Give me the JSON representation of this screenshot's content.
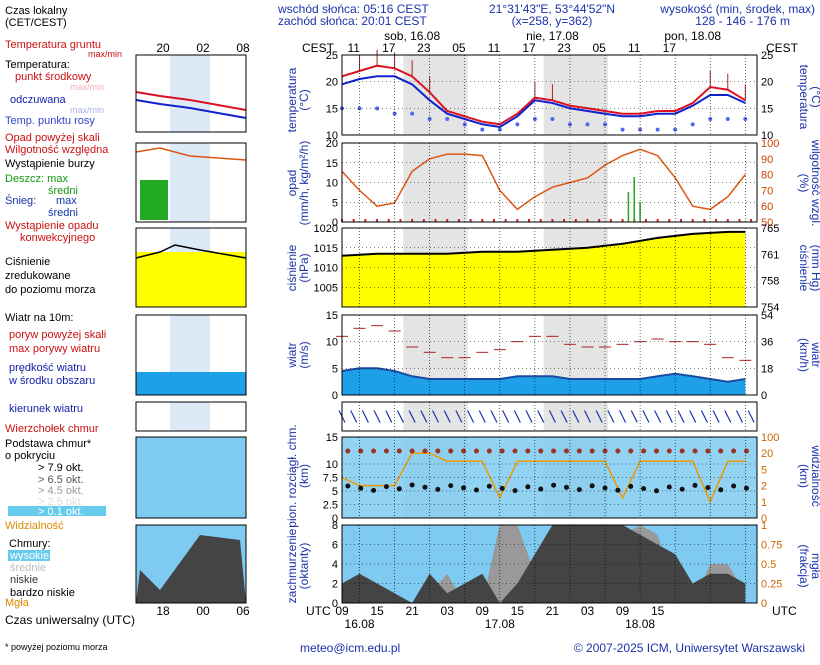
{
  "header": {
    "sunrise": "wschód słońca: 05:16 CEST",
    "sunset": "zachód słońca: 20:01 CEST",
    "coords": "21°31'43\"E, 53°44'52\"N",
    "grid": "(x=258, y=362)",
    "alt_title": "wysokość (min, środek, max)",
    "alt_values": "128 - 146 - 176 m"
  },
  "legend": {
    "local_time": "Czas lokalny",
    "local_time2": "(CET/CEST)",
    "ground_temp": "Temperatura gruntu",
    "ground_temp_mm": "max/min",
    "temperature": "Temperatura:",
    "center_point": "punkt środkowy",
    "center_mm": "max/min",
    "felt": "odczuwana",
    "felt_mm": "max/min",
    "dew": "Temp. punktu rosy",
    "precip_over": "Opad powyżej skali",
    "humidity": "Wilgotność względna",
    "storm": "Wystąpienie burzy",
    "rain": "Deszcz: max",
    "rain_mean": "średni",
    "snow": "Śnieg:",
    "snow_max": "max",
    "snow_mean": "średni",
    "convective": "Wystąpienie opadu",
    "convective2": "konwekcyjnego",
    "pressure": "Ciśnienie",
    "pressure2": "zredukowane",
    "pressure3": "do poziomu morza",
    "wind_title": "Wiatr na 10m:",
    "gust_over": "poryw powyżej skali",
    "gust_max": "max porywy wiatru",
    "wind_speed": "prędkość wiatru",
    "wind_speed2": "w środku obszaru",
    "wind_dir": "kierunek wiatru",
    "cloud_top": "Wierzchołek chmur",
    "cloud_base": "Podstawa chmur*",
    "cloud_base2": "o pokryciu",
    "okt79": "> 7.9 okt.",
    "okt65": "> 6.5 okt.",
    "okt45": "> 4.5 okt.",
    "okt25": "> 2.5 okt.",
    "okt01": "> 0.1 okt.",
    "visibility": "Widzialność",
    "clouds": "Chmury:",
    "cl_high": "wysokie",
    "cl_mid": "średnie",
    "cl_low": "niskie",
    "cl_vlow": "bardzo niskie",
    "fog": "Mgła",
    "utc_title": "Czas uniwersalny (UTC)",
    "footnote": "* powyżej poziomu morza"
  },
  "legend_axis": {
    "local_ticks": [
      "20",
      "02",
      "08"
    ],
    "utc_ticks": [
      "18",
      "00",
      "06"
    ]
  },
  "main": {
    "cest": "CEST",
    "utc": "UTC",
    "days_top": [
      "sob, 16.08",
      "nie, 17.08",
      "pon, 18.08"
    ],
    "hours_top": [
      "11",
      "17",
      "23",
      "05",
      "11",
      "17",
      "23",
      "05",
      "11",
      "17"
    ],
    "hours_bottom": [
      "09",
      "15",
      "21",
      "03",
      "09",
      "15",
      "21",
      "03",
      "09",
      "15"
    ],
    "days_bottom": [
      "16.08",
      "17.08",
      "18.08"
    ],
    "labels": {
      "temp_l": "temperatura",
      "temp_l2": "(°C)",
      "temp_r": "temperatura",
      "temp_r2": "(°C)",
      "precip_l": "opad",
      "precip_l2": "(mm/h, kg/m²/h)",
      "hum_r": "wilgotność wzgl.",
      "hum_r2": "(%)",
      "pres_l": "ciśnienie",
      "pres_l2": "(hPa)",
      "pres_r": "ciśnienie",
      "pres_r2": "(mm Hg)",
      "wind_l": "wiatr",
      "wind_l2": "(m/s)",
      "wind_r": "wiatr",
      "wind_r2": "(km/h)",
      "cloud_l": "pion. rozciągł. chm.",
      "cloud_l2": "(km)",
      "vis_r": "widzialność",
      "vis_r2": "(km)",
      "cover_l": "zachmurzenie",
      "cover_l2": "(oktanty)",
      "fog_r": "mgła",
      "fog_r2": "(frakcja)"
    }
  },
  "footer": {
    "email": "meteo@icm.edu.pl",
    "copyright": "© 2007-2025 ICM, Uniwersytet Warszawski"
  },
  "colors": {
    "temp": "#dd1122",
    "felt": "#1122cc",
    "dew": "#5566ee",
    "humidity": "#dd5511",
    "pressure_fill": "#ffff00",
    "wind_fill": "#1ea0e8",
    "wind_dark": "#1a4ba0",
    "rain": "#22aa22",
    "night_shade": "#e4e4e4",
    "visibility": "#ee9900"
  },
  "chart_data": [
    {
      "type": "line",
      "title": "temperatura",
      "ylabel": "°C",
      "ylim": [
        10,
        25
      ],
      "x_hours_from_start": [
        0,
        3,
        6,
        9,
        12,
        15,
        18,
        21,
        24,
        27,
        30,
        33,
        36,
        39,
        42,
        45,
        48,
        51,
        54,
        57,
        60,
        63,
        66,
        69
      ],
      "series": [
        {
          "name": "punkt środkowy",
          "values": [
            21,
            22,
            23,
            22.5,
            21,
            18,
            14.5,
            13.5,
            12.5,
            12,
            14,
            17,
            16.5,
            15.5,
            15,
            14.5,
            14,
            14,
            14.5,
            14.5,
            16,
            19,
            18.5,
            16.5
          ]
        },
        {
          "name": "odczuwana",
          "values": [
            19.5,
            20.5,
            21,
            21,
            19.5,
            16.5,
            14,
            13,
            12,
            11.5,
            13.5,
            16.5,
            16,
            15,
            14.5,
            14,
            13.5,
            13.5,
            14,
            14,
            15.5,
            17.5,
            17.5,
            16
          ]
        },
        {
          "name": "Temp. punktu rosy",
          "values": [
            15,
            15,
            15,
            14,
            14,
            13,
            13,
            12,
            11,
            11,
            12,
            13,
            13,
            12,
            12,
            12,
            11,
            11,
            11,
            11,
            12,
            13,
            13,
            13
          ]
        }
      ]
    },
    {
      "type": "line",
      "title": "wilgotność wzgl.",
      "ylabel": "%",
      "ylim": [
        50,
        100
      ],
      "x_hours_from_start": [
        0,
        3,
        6,
        9,
        12,
        15,
        18,
        21,
        24,
        27,
        30,
        33,
        36,
        39,
        42,
        45,
        48,
        51,
        54,
        57,
        60,
        63,
        66,
        69
      ],
      "series": [
        {
          "name": "Wilgotność względna",
          "values": [
            82,
            70,
            60,
            62,
            82,
            90,
            93,
            93,
            92,
            70,
            58,
            66,
            72,
            75,
            78,
            86,
            92,
            96,
            92,
            78,
            60,
            58,
            66,
            80
          ]
        }
      ]
    },
    {
      "type": "line",
      "title": "ciśnienie",
      "ylabel": "hPa",
      "ylim": [
        1000,
        1020
      ],
      "x_hours_from_start": [
        0,
        6,
        12,
        18,
        24,
        30,
        36,
        42,
        48,
        54,
        60,
        66,
        69
      ],
      "series": [
        {
          "name": "Ciśnienie",
          "values": [
            1013,
            1013.5,
            1013.5,
            1013.5,
            1014,
            1014,
            1014.5,
            1015,
            1016,
            1017.5,
            1018.5,
            1019,
            1019
          ]
        }
      ]
    },
    {
      "type": "area",
      "title": "wiatr",
      "ylabel": "m/s",
      "ylim": [
        0,
        15
      ],
      "x_hours_from_start": [
        0,
        3,
        6,
        9,
        12,
        15,
        18,
        21,
        24,
        27,
        30,
        33,
        36,
        39,
        42,
        45,
        48,
        51,
        54,
        57,
        60,
        63,
        66,
        69
      ],
      "series": [
        {
          "name": "prędkość wiatru",
          "values": [
            4.5,
            5,
            5,
            4.5,
            3.5,
            3,
            3,
            3,
            3,
            3,
            3.5,
            3.5,
            3.5,
            3,
            3,
            3,
            3,
            3,
            3.5,
            4,
            3.5,
            3,
            2.5,
            3
          ]
        },
        {
          "name": "max porywy wiatru",
          "values": [
            11,
            12.5,
            13,
            12,
            9,
            8,
            7,
            7,
            8,
            8.5,
            10,
            11,
            11,
            9.5,
            9,
            9,
            9.5,
            10,
            10.5,
            10,
            10,
            9.5,
            7,
            6.5
          ]
        }
      ]
    },
    {
      "type": "line",
      "title": "widzialność",
      "ylabel": "km",
      "ylim": [
        0,
        100
      ],
      "x_hours_from_start": [
        0,
        3,
        6,
        9,
        12,
        15,
        18,
        21,
        24,
        27,
        30,
        33,
        36,
        39,
        42,
        45,
        48,
        51,
        54,
        57,
        60,
        63,
        66,
        69
      ],
      "series": [
        {
          "name": "Widzialność",
          "values": [
            50,
            40,
            40,
            40,
            80,
            80,
            70,
            70,
            70,
            25,
            70,
            70,
            70,
            70,
            70,
            70,
            25,
            70,
            70,
            70,
            70,
            20,
            70,
            70
          ]
        }
      ]
    },
    {
      "type": "area",
      "title": "zachmurzenie",
      "ylabel": "oktanty",
      "ylim": [
        0,
        8
      ],
      "x_hours_from_start": [
        0,
        3,
        6,
        9,
        12,
        15,
        18,
        21,
        24,
        27,
        30,
        33,
        36,
        39,
        42,
        45,
        48,
        51,
        54,
        57,
        60,
        63,
        66,
        69
      ],
      "series": [
        {
          "name": "niskie",
          "values": [
            2,
            3,
            2,
            1,
            0,
            3,
            1,
            2,
            3,
            0,
            2,
            5,
            8,
            8,
            8,
            8,
            8,
            7,
            6,
            5,
            2,
            3,
            3,
            2
          ]
        },
        {
          "name": "średnie",
          "values": [
            1,
            1,
            1,
            0,
            0,
            1,
            3,
            0,
            0,
            8,
            8,
            3,
            1,
            2,
            6,
            7,
            7,
            8,
            7,
            1,
            0,
            4,
            4,
            1
          ]
        }
      ]
    }
  ]
}
